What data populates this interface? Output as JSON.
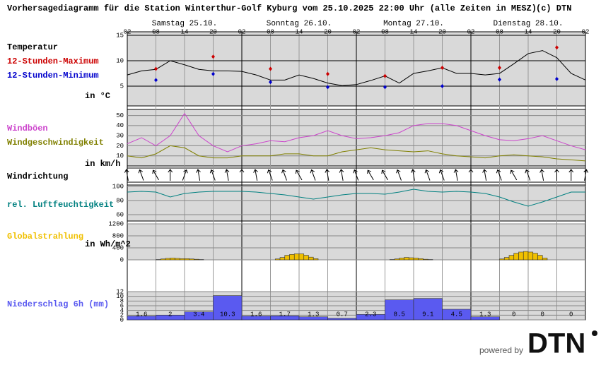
{
  "title": "Vorhersagediagramm für die Station Winterthur-Golf Kyburg vom 25.10.2025 22:00 Uhr (alle Zeiten in MESZ)",
  "copyright": "(c) DTN",
  "footer": {
    "powered_by": "powered by",
    "logo": "DTN"
  },
  "time_axis": {
    "hour_labels": [
      "02",
      "08",
      "14",
      "20",
      "02",
      "08",
      "14",
      "20",
      "02",
      "08",
      "14",
      "20",
      "02",
      "08",
      "14",
      "20",
      "02"
    ],
    "days": [
      "Samstag 25.10.",
      "Sonntag 26.10.",
      "Montag 27.10.",
      "Dienstag 28.10."
    ]
  },
  "chart_data": [
    {
      "type": "line",
      "unit": "in °C",
      "ylim": [
        1.1,
        15.7
      ],
      "yticks": [
        5,
        10,
        15
      ],
      "series": [
        {
          "name": "Temperatur",
          "color": "#000000",
          "values": [
            7.2,
            8,
            8.3,
            10,
            9.2,
            8.3,
            8,
            8,
            7.9,
            7.2,
            6.2,
            6.2,
            7.2,
            6.5,
            5.6,
            5.1,
            5.3,
            6.1,
            7,
            5.6,
            7.5,
            8,
            8.6,
            7.5,
            7.5,
            7.2,
            7.5,
            9.4,
            11.4,
            12,
            10.6,
            7.5,
            6.2
          ]
        },
        {
          "name": "12-Stunden-Maximum",
          "color": "#cc0000",
          "marker": "diamond",
          "values": [
            null,
            null,
            8.4,
            null,
            null,
            null,
            10.8,
            null,
            null,
            null,
            8.4,
            null,
            null,
            null,
            7.4,
            null,
            null,
            null,
            7,
            null,
            null,
            null,
            8.6,
            null,
            null,
            null,
            8.6,
            null,
            null,
            null,
            12.6,
            null,
            null
          ]
        },
        {
          "name": "12-Stunden-Minimum",
          "color": "#0000cc",
          "marker": "diamond",
          "values": [
            null,
            null,
            6.2,
            null,
            null,
            null,
            7.4,
            null,
            null,
            null,
            5.8,
            null,
            null,
            null,
            4.8,
            null,
            null,
            null,
            4.8,
            null,
            null,
            null,
            5,
            null,
            null,
            null,
            6.3,
            null,
            null,
            null,
            6.4,
            null,
            null
          ]
        }
      ]
    },
    {
      "type": "line",
      "unit": "in km/h",
      "ylim": [
        0,
        56
      ],
      "yticks": [
        10,
        20,
        30,
        40,
        50
      ],
      "series": [
        {
          "name": "Windböen",
          "color": "#cc44cc",
          "values": [
            22,
            28,
            20,
            30,
            52,
            30,
            20,
            14,
            20,
            22,
            25,
            24,
            28,
            30,
            35,
            30,
            27,
            28,
            30,
            33,
            40,
            42,
            42,
            40,
            35,
            30,
            26,
            25,
            27,
            30,
            25,
            20,
            16
          ]
        },
        {
          "name": "Windgeschwindigkeit",
          "color": "#808000",
          "values": [
            10,
            8,
            12,
            20,
            18,
            10,
            8,
            8,
            10,
            10,
            10,
            12,
            12,
            10,
            10,
            14,
            16,
            18,
            16,
            15,
            14,
            15,
            12,
            10,
            9,
            8,
            10,
            11,
            10,
            9,
            7,
            6,
            5
          ]
        }
      ]
    },
    {
      "type": "arrows",
      "title": "Windrichtung",
      "values": [
        170,
        160,
        150,
        180,
        200,
        170,
        160,
        170,
        180,
        170,
        160,
        160,
        150,
        160,
        170,
        170,
        160,
        150,
        150,
        160,
        170,
        160,
        160,
        170,
        180,
        170,
        160,
        150,
        160,
        170,
        180,
        180,
        190
      ]
    },
    {
      "type": "line",
      "ylim": [
        51,
        102
      ],
      "yticks": [
        60,
        80,
        100
      ],
      "series": [
        {
          "name": "rel. Luftfeuchtigkeit",
          "color": "#008080",
          "values": [
            92,
            93,
            92,
            85,
            90,
            92,
            93,
            93,
            93,
            92,
            90,
            88,
            85,
            82,
            85,
            88,
            90,
            90,
            89,
            92,
            96,
            93,
            92,
            93,
            92,
            90,
            85,
            78,
            72,
            78,
            85,
            92,
            92
          ]
        }
      ]
    },
    {
      "type": "bar",
      "title": "Globalstrahlung",
      "unit": "in Wh/m^2",
      "color": "#f0c000",
      "ylim": [
        0,
        1200
      ],
      "yticks": [
        0,
        400,
        800,
        1200
      ],
      "values": [
        0,
        0,
        0,
        0,
        0,
        0,
        10,
        30,
        50,
        60,
        50,
        40,
        40,
        30,
        20,
        10,
        0,
        0,
        0,
        0,
        0,
        0,
        0,
        0,
        0,
        0,
        0,
        0,
        0,
        0,
        0,
        30,
        80,
        150,
        180,
        200,
        200,
        150,
        90,
        40,
        0,
        0,
        0,
        0,
        0,
        0,
        0,
        0,
        0,
        0,
        0,
        0,
        0,
        0,
        0,
        10,
        30,
        60,
        80,
        70,
        60,
        40,
        20,
        10,
        0,
        0,
        0,
        0,
        0,
        0,
        0,
        0,
        0,
        0,
        0,
        0,
        0,
        0,
        30,
        80,
        150,
        220,
        260,
        280,
        260,
        220,
        150,
        60,
        0,
        0,
        0,
        0,
        0,
        0,
        0,
        0
      ]
    },
    {
      "type": "bar",
      "title": "Niederschlag 6h (mm)",
      "color": "#5a5af0",
      "labels": true,
      "ylim": [
        0,
        12
      ],
      "yticks": [
        0,
        2,
        4,
        6,
        8,
        10,
        12
      ],
      "values": [
        1.6,
        2,
        3.4,
        10.3,
        1.6,
        1.7,
        1.3,
        0.7,
        2.3,
        8.5,
        9.1,
        4.5,
        1.3,
        0,
        0,
        0
      ]
    }
  ]
}
